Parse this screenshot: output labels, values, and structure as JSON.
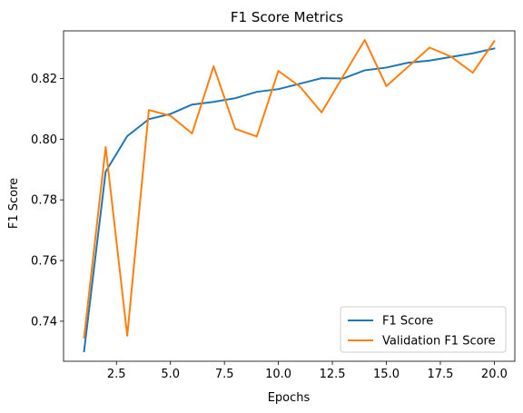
{
  "chart_data": {
    "type": "line",
    "title": "F1 Score Metrics",
    "xlabel": "Epochs",
    "ylabel": "F1 Score",
    "xlim": [
      0.05,
      20.95
    ],
    "ylim": [
      0.7268,
      0.8357
    ],
    "x_ticks": [
      2.5,
      5.0,
      7.5,
      10.0,
      12.5,
      15.0,
      17.5,
      20.0
    ],
    "x_tick_labels": [
      "2.5",
      "5.0",
      "7.5",
      "10.0",
      "12.5",
      "15.0",
      "17.5",
      "20.0"
    ],
    "y_ticks": [
      0.74,
      0.76,
      0.78,
      0.8,
      0.82
    ],
    "y_tick_labels": [
      "0.74",
      "0.76",
      "0.78",
      "0.80",
      "0.82"
    ],
    "grid": false,
    "legend_position": "lower-right",
    "x": [
      1,
      2,
      3,
      4,
      5,
      6,
      7,
      8,
      9,
      10,
      11,
      12,
      13,
      14,
      15,
      16,
      17,
      18,
      19,
      20
    ],
    "series": [
      {
        "name": "F1 Score",
        "color": "#1f77b4",
        "values": [
          0.7301,
          0.7893,
          0.801,
          0.8066,
          0.8083,
          0.8114,
          0.8123,
          0.8135,
          0.8156,
          0.8165,
          0.8183,
          0.8201,
          0.82,
          0.8227,
          0.8236,
          0.8252,
          0.8259,
          0.8271,
          0.8283,
          0.8299
        ]
      },
      {
        "name": "Validation F1 Score",
        "color": "#ff7f0e",
        "values": [
          0.7346,
          0.7974,
          0.7352,
          0.8096,
          0.8077,
          0.8019,
          0.824,
          0.8034,
          0.8009,
          0.8225,
          0.8173,
          0.8088,
          0.8208,
          0.8327,
          0.8175,
          0.8238,
          0.8302,
          0.8272,
          0.8219,
          0.8323
        ]
      }
    ]
  }
}
